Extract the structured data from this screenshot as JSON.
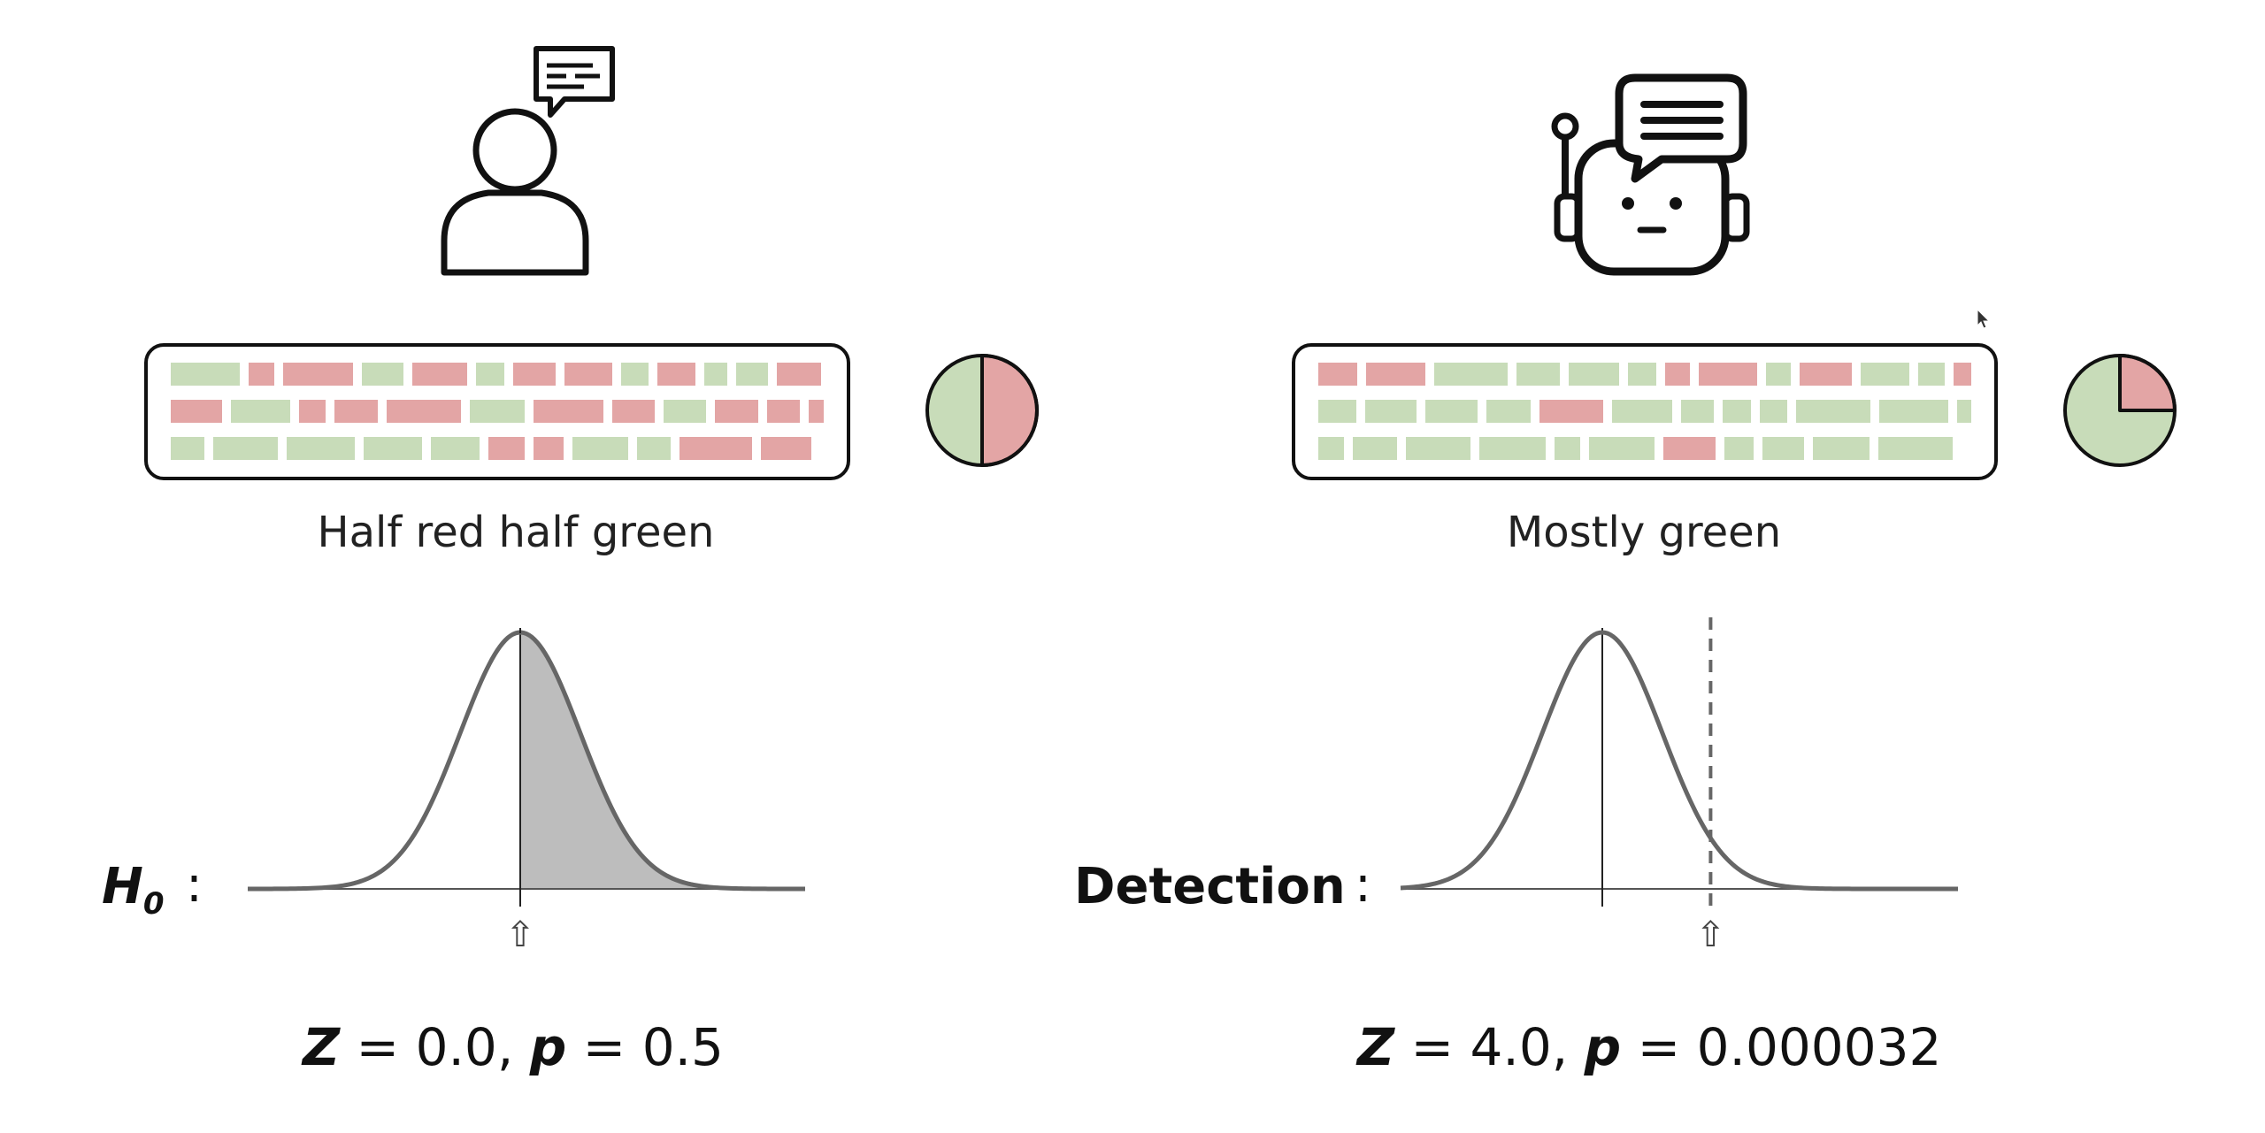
{
  "colors": {
    "red_token": "#e3a5a5",
    "green_token": "#c8dcb9",
    "outline": "#111111",
    "curve": "#666666",
    "shade": "#bdbdbd"
  },
  "icons": {
    "left": "person-speaking-icon",
    "right": "robot-speaking-icon"
  },
  "left": {
    "caption": "Half red half green",
    "label_symbol": "H",
    "label_subscript": "0",
    "colon": ":",
    "z_symbol": "Z",
    "z_value": "= 0.0,",
    "p_symbol": "p",
    "p_value": "= 0.5",
    "arrow_glyph": "⇧",
    "red_fraction": 0.5,
    "z": 0.0,
    "tail_shaded": true
  },
  "right": {
    "caption": "Mostly green",
    "label": "Detection",
    "colon": ":",
    "z_symbol": "Z",
    "z_value": "= 4.0,",
    "p_symbol": "p",
    "p_value": "= 0.000032",
    "arrow_glyph": "⇧",
    "red_fraction": 0.25,
    "z": 4.0,
    "tail_shaded": false
  }
}
